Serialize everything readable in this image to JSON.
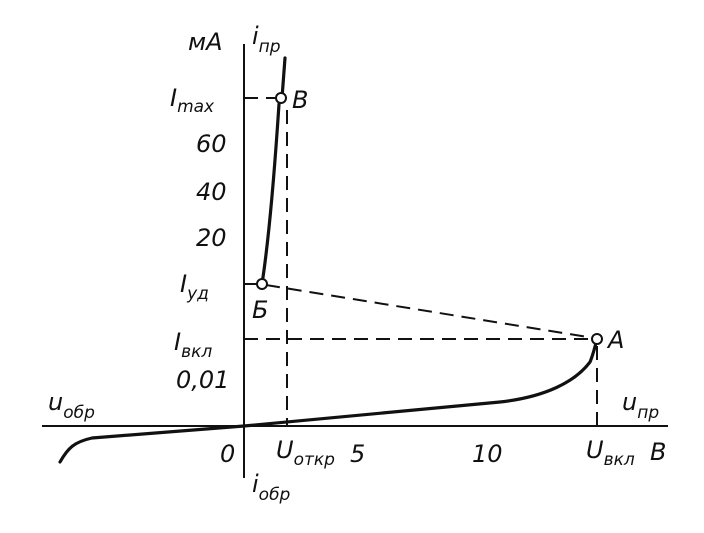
{
  "diagram": {
    "axes": {
      "y_unit": "мА",
      "y_name_main": "i",
      "y_name_sub": "пр",
      "y_neg_main": "i",
      "y_neg_sub": "обр",
      "x_pos_main": "u",
      "x_pos_sub": "пр",
      "x_neg_main": "u",
      "x_neg_sub": "обр",
      "x_unit": "В",
      "origin": "0"
    },
    "y_ticks": {
      "imax_main": "I",
      "imax_sub": "max",
      "t60": "60",
      "t40": "40",
      "t20": "20",
      "iud_main": "I",
      "iud_sub": "уд",
      "ivkl_main": "I",
      "ivkl_sub": "вкл",
      "t001": "0,01"
    },
    "x_ticks": {
      "uotkr_main": "U",
      "uotkr_sub": "откр",
      "t5": "5",
      "t10": "10",
      "uvkl_main": "U",
      "uvkl_sub": "вкл"
    },
    "points": {
      "A": "А",
      "B": "Б",
      "V": "В"
    }
  }
}
